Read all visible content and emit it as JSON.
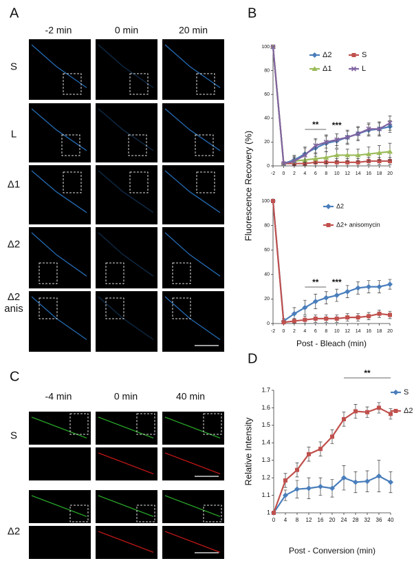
{
  "panels": {
    "a": "A",
    "b": "B",
    "c": "C",
    "d": "D"
  },
  "panel_a": {
    "columns": [
      "-2 min",
      "0 min",
      "20 min"
    ],
    "rows": [
      "S",
      "L",
      "Δ1",
      "Δ2",
      "Δ2 anis"
    ]
  },
  "panel_c": {
    "columns": [
      "-4 min",
      "0 min",
      "40 min"
    ],
    "rows": [
      "S",
      "Δ2"
    ]
  },
  "chart_data": [
    {
      "type": "line",
      "y_label": "Fluorescence Recovery (%)",
      "x": [
        -2,
        0,
        2,
        4,
        6,
        8,
        10,
        12,
        14,
        16,
        18,
        20
      ],
      "xlim": [
        -2,
        20
      ],
      "xticks": [
        -2,
        0,
        2,
        4,
        6,
        8,
        10,
        12,
        14,
        16,
        18,
        20
      ],
      "ylim": [
        0,
        100
      ],
      "yticks": [
        0,
        20,
        40,
        60,
        80,
        100
      ],
      "series": [
        {
          "name": "Δ2",
          "color": "#4a7ebb",
          "values": [
            100,
            2,
            5,
            10,
            15,
            19,
            21,
            24,
            27,
            30,
            31,
            33
          ],
          "errors": [
            null,
            1,
            4,
            6,
            7,
            7,
            6,
            6,
            6,
            5,
            6,
            5
          ]
        },
        {
          "name": "S",
          "color": "#c0504d",
          "values": [
            100,
            2,
            2,
            2,
            3,
            3,
            3,
            3,
            3,
            4,
            4,
            4
          ],
          "errors": [
            null,
            1,
            2,
            2,
            3,
            3,
            3,
            3,
            3,
            3,
            3,
            3
          ]
        },
        {
          "name": "Δ1",
          "color": "#9bbb59",
          "values": [
            100,
            2,
            4,
            5,
            6,
            7,
            9,
            9,
            9,
            10,
            11,
            12
          ],
          "errors": [
            null,
            1,
            3,
            4,
            4,
            5,
            5,
            5,
            5,
            6,
            6,
            7
          ]
        },
        {
          "name": "L",
          "color": "#8064a2",
          "values": [
            100,
            2,
            4,
            9,
            17,
            20,
            22,
            24,
            27,
            31,
            31,
            36
          ],
          "errors": [
            null,
            1,
            4,
            6,
            6,
            5,
            5,
            5,
            5,
            5,
            5,
            6
          ]
        }
      ],
      "annotations": [
        {
          "text": "**",
          "from": 4,
          "to": 8
        },
        {
          "text": "***",
          "x": 10
        }
      ]
    },
    {
      "type": "line",
      "x_label": "Post - Bleach (min)",
      "x": [
        -2,
        0,
        2,
        4,
        6,
        8,
        10,
        12,
        14,
        16,
        18,
        20
      ],
      "xlim": [
        -2,
        20
      ],
      "xticks": [
        -2,
        0,
        2,
        4,
        6,
        8,
        10,
        12,
        14,
        16,
        18,
        20
      ],
      "ylim": [
        0,
        100
      ],
      "yticks": [
        0,
        20,
        40,
        60,
        80,
        100
      ],
      "series": [
        {
          "name": "Δ2",
          "color": "#4a7ebb",
          "values": [
            100,
            2,
            8,
            13,
            18,
            21,
            23,
            26,
            29,
            30,
            30,
            32
          ],
          "errors": [
            null,
            2,
            5,
            6,
            6,
            5,
            5,
            5,
            5,
            5,
            5,
            4
          ]
        },
        {
          "name": "Δ2+ anisomycin",
          "color": "#c0504d",
          "values": [
            100,
            1,
            2,
            3,
            4,
            4,
            4,
            5,
            5,
            6,
            8,
            7
          ],
          "errors": [
            null,
            1,
            2,
            3,
            3,
            3,
            3,
            3,
            3,
            3,
            3,
            3
          ]
        }
      ],
      "annotations": [
        {
          "text": "**",
          "from": 4,
          "to": 8
        },
        {
          "text": "***",
          "x": 10
        }
      ]
    },
    {
      "type": "line",
      "y_label": "Relative Intensity",
      "x_label": "Post - Conversion (min)",
      "x": [
        0,
        4,
        8,
        12,
        16,
        20,
        24,
        28,
        32,
        36,
        40
      ],
      "xlim": [
        0,
        40
      ],
      "xticks": [
        0,
        4,
        8,
        12,
        16,
        20,
        24,
        28,
        32,
        36,
        40
      ],
      "ylim": [
        1,
        1.7
      ],
      "yticks": [
        1,
        1.1,
        1.2,
        1.3,
        1.4,
        1.5,
        1.6,
        1.7
      ],
      "series": [
        {
          "name": "S",
          "color": "#4a7ebb",
          "values": [
            1,
            1.1,
            1.135,
            1.14,
            1.15,
            1.14,
            1.2,
            1.175,
            1.18,
            1.21,
            1.175
          ],
          "errors": [
            null,
            0.03,
            0.05,
            0.06,
            0.05,
            0.05,
            0.07,
            0.06,
            0.06,
            0.09,
            0.06
          ]
        },
        {
          "name": "Δ2",
          "color": "#c0504d",
          "values": [
            1,
            1.185,
            1.245,
            1.335,
            1.365,
            1.435,
            1.535,
            1.58,
            1.575,
            1.6,
            1.565
          ],
          "errors": [
            null,
            0.04,
            0.04,
            0.04,
            0.04,
            0.04,
            0.04,
            0.04,
            0.03,
            0.03,
            0.03
          ]
        }
      ],
      "annotations": [
        {
          "text": "**",
          "from": 24,
          "to": 40
        }
      ]
    }
  ]
}
